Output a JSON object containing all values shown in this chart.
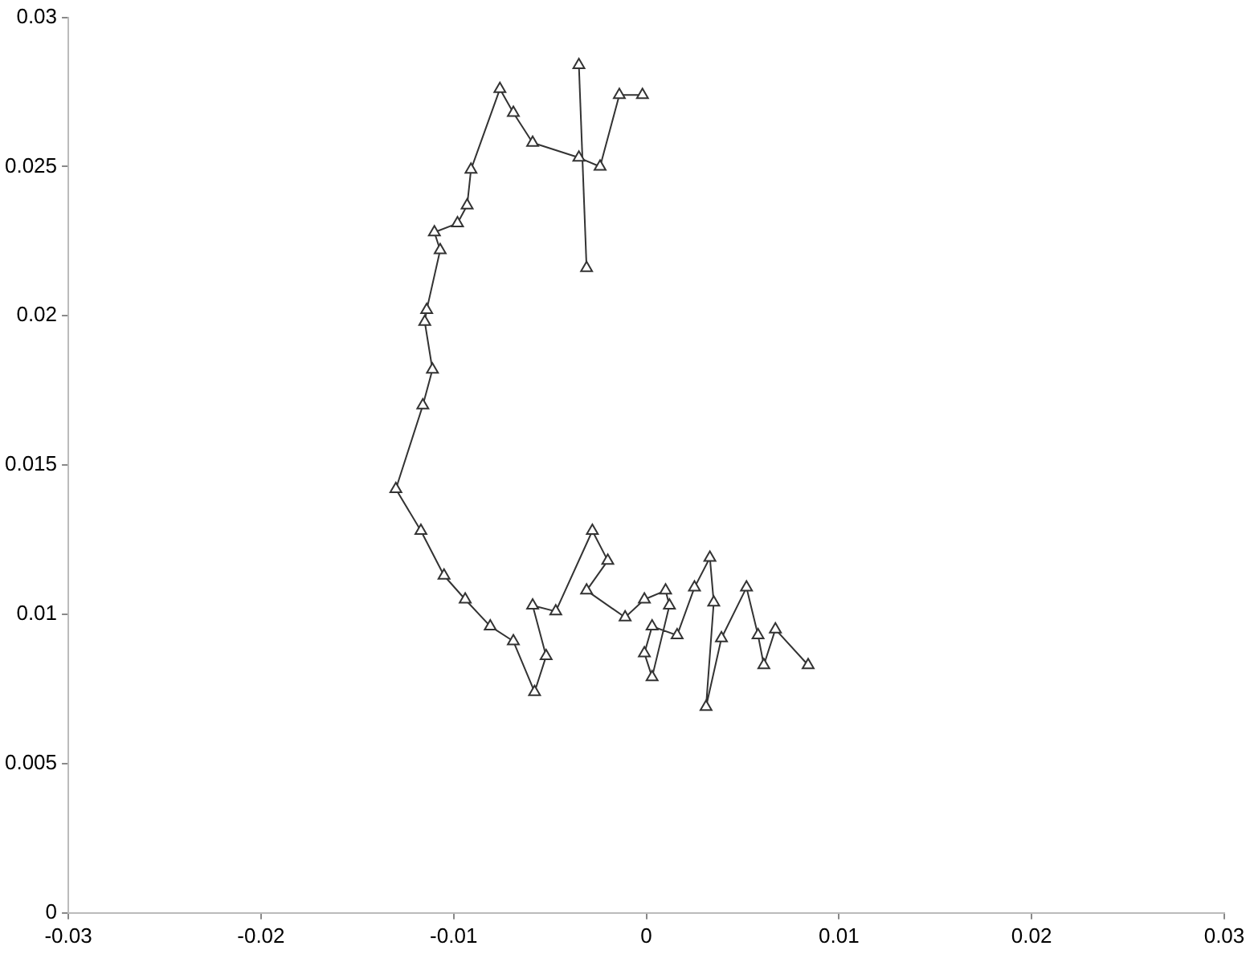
{
  "chart_data": {
    "type": "line",
    "marker": "triangle",
    "grid": false,
    "legend": false,
    "xlim": [
      -0.03,
      0.03
    ],
    "xticks": [
      -0.03,
      -0.02,
      -0.01,
      0,
      0.01,
      0.02,
      0.03
    ],
    "ylim": [
      0,
      0.03
    ],
    "yticks": [
      0,
      0.005,
      0.01,
      0.015,
      0.02,
      0.025,
      0.03
    ],
    "series": [
      {
        "color": "#333333",
        "x": [
          0.0084,
          0.0067,
          0.0061,
          0.0058,
          0.0052,
          0.0039,
          0.0031,
          0.0035,
          0.0033,
          0.0025,
          0.0016,
          0.0003,
          -0.0001,
          0.0003,
          0.0012,
          0.001,
          -0.0001,
          -0.0011,
          -0.0031,
          -0.002,
          -0.0028,
          -0.0047,
          -0.0059,
          -0.0052,
          -0.0058,
          -0.0069,
          -0.0081,
          -0.0094,
          -0.0105,
          -0.0117,
          -0.013,
          -0.0116,
          -0.0111,
          -0.0115,
          -0.0114,
          -0.0107,
          -0.011,
          -0.0098,
          -0.0093,
          -0.0091,
          -0.0076,
          -0.0069,
          -0.0059,
          -0.0035,
          -0.0024,
          -0.0014,
          -0.0002
        ],
        "values": [
          0.0083,
          0.0095,
          0.0083,
          0.0093,
          0.0109,
          0.0092,
          0.0069,
          0.0104,
          0.0119,
          0.0109,
          0.0093,
          0.0096,
          0.0087,
          0.0079,
          0.0103,
          0.0108,
          0.0105,
          0.0099,
          0.0108,
          0.0118,
          0.0128,
          0.0101,
          0.0103,
          0.0086,
          0.0074,
          0.0091,
          0.0096,
          0.0105,
          0.0113,
          0.0128,
          0.0142,
          0.017,
          0.0182,
          0.0198,
          0.0202,
          0.0222,
          0.0228,
          0.0231,
          0.0237,
          0.0249,
          0.0276,
          0.0268,
          0.0258,
          0.0253,
          0.025,
          0.0274,
          0.0274
        ]
      },
      {
        "color": "#333333",
        "x": [
          -0.0035,
          -0.0031
        ],
        "values": [
          0.0284,
          0.0216
        ]
      }
    ]
  }
}
